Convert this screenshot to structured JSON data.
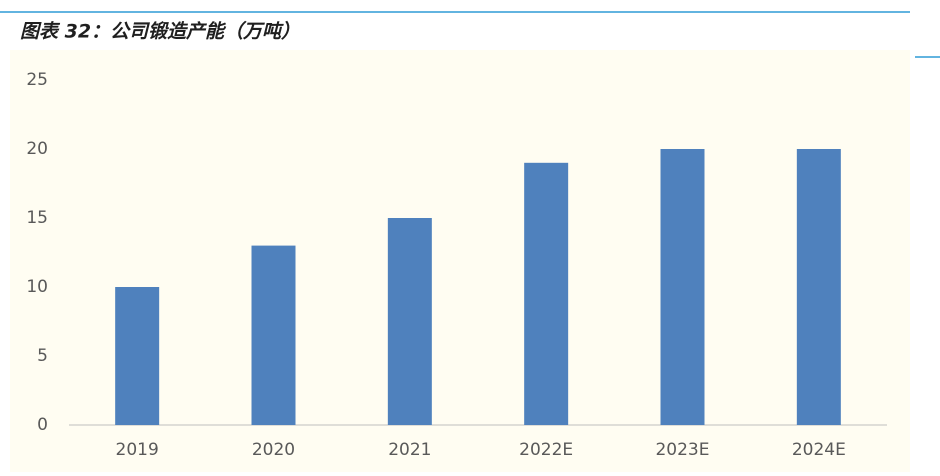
{
  "chart_data": {
    "type": "bar",
    "title": "图表 32：公司锻造产能（万吨）",
    "categories": [
      "2019",
      "2020",
      "2021",
      "2022E",
      "2023E",
      "2024E"
    ],
    "values": [
      10,
      13,
      15,
      19,
      20,
      20
    ],
    "color": "#4f81bd",
    "ylim": [
      0,
      25
    ],
    "yticks": [
      0,
      5,
      10,
      15,
      20,
      25
    ],
    "grid": false
  }
}
